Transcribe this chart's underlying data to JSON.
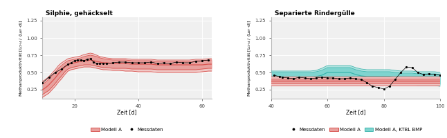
{
  "title1": "Silphie, gehäckselt",
  "title2": "Separierte Rindergülle",
  "ylabel": "Methanproduktivität [L$_{CH4}$ / (L$_{AV}$·d)]",
  "xlabel": "Zeit [d]",
  "bg_color": "#ffffff",
  "plot_bg": "#f0f0f0",
  "grid_color": "#ffffff",
  "plot1": {
    "xlim": [
      10,
      63
    ],
    "ylim": [
      0.12,
      1.3
    ],
    "yticks": [
      0.25,
      0.5,
      0.75,
      1.0,
      1.25
    ],
    "xticks": [
      20,
      40,
      60
    ],
    "model_color": "#d9534f",
    "band_inner_color": "#e8a09d",
    "band_outer_color": "#f0c8c6",
    "model_x": [
      10,
      11,
      12,
      13,
      14,
      15,
      16,
      17,
      18,
      19,
      20,
      21,
      22,
      23,
      24,
      25,
      26,
      27,
      28,
      29,
      30,
      32,
      34,
      36,
      38,
      40,
      42,
      44,
      46,
      48,
      50,
      52,
      54,
      56,
      58,
      60,
      62,
      63
    ],
    "model_y": [
      0.25,
      0.28,
      0.32,
      0.37,
      0.42,
      0.48,
      0.53,
      0.58,
      0.61,
      0.63,
      0.64,
      0.65,
      0.66,
      0.67,
      0.67,
      0.68,
      0.67,
      0.66,
      0.65,
      0.64,
      0.64,
      0.63,
      0.63,
      0.63,
      0.62,
      0.62,
      0.62,
      0.62,
      0.61,
      0.61,
      0.61,
      0.61,
      0.61,
      0.61,
      0.61,
      0.61,
      0.62,
      0.62
    ],
    "upper1_y": [
      0.33,
      0.36,
      0.4,
      0.45,
      0.5,
      0.56,
      0.6,
      0.64,
      0.67,
      0.68,
      0.69,
      0.7,
      0.71,
      0.73,
      0.74,
      0.75,
      0.74,
      0.73,
      0.71,
      0.7,
      0.69,
      0.68,
      0.68,
      0.68,
      0.67,
      0.67,
      0.67,
      0.67,
      0.66,
      0.66,
      0.66,
      0.66,
      0.66,
      0.66,
      0.67,
      0.67,
      0.68,
      0.68
    ],
    "lower1_y": [
      0.18,
      0.21,
      0.24,
      0.29,
      0.34,
      0.4,
      0.45,
      0.51,
      0.55,
      0.57,
      0.58,
      0.59,
      0.6,
      0.61,
      0.61,
      0.61,
      0.6,
      0.59,
      0.58,
      0.57,
      0.57,
      0.56,
      0.56,
      0.56,
      0.55,
      0.55,
      0.55,
      0.55,
      0.54,
      0.54,
      0.54,
      0.54,
      0.54,
      0.54,
      0.54,
      0.55,
      0.56,
      0.56
    ],
    "upper2_y": [
      0.37,
      0.4,
      0.44,
      0.49,
      0.54,
      0.6,
      0.64,
      0.67,
      0.7,
      0.71,
      0.72,
      0.73,
      0.74,
      0.76,
      0.77,
      0.78,
      0.77,
      0.75,
      0.73,
      0.72,
      0.71,
      0.7,
      0.7,
      0.7,
      0.69,
      0.69,
      0.69,
      0.69,
      0.68,
      0.68,
      0.68,
      0.68,
      0.68,
      0.68,
      0.69,
      0.69,
      0.7,
      0.7
    ],
    "lower2_y": [
      0.14,
      0.17,
      0.2,
      0.25,
      0.3,
      0.36,
      0.41,
      0.47,
      0.52,
      0.54,
      0.55,
      0.56,
      0.57,
      0.58,
      0.58,
      0.58,
      0.57,
      0.56,
      0.55,
      0.54,
      0.54,
      0.53,
      0.53,
      0.52,
      0.52,
      0.51,
      0.51,
      0.51,
      0.5,
      0.5,
      0.5,
      0.5,
      0.5,
      0.5,
      0.5,
      0.51,
      0.52,
      0.52
    ],
    "meas_x": [
      10,
      12,
      14,
      16,
      18,
      19,
      20,
      21,
      22,
      23,
      24,
      25,
      26,
      27,
      28,
      29,
      30,
      32,
      34,
      36,
      38,
      40,
      42,
      44,
      46,
      48,
      50,
      52,
      54,
      56,
      58,
      60,
      62
    ],
    "meas_y": [
      0.35,
      0.43,
      0.5,
      0.55,
      0.62,
      0.64,
      0.67,
      0.68,
      0.68,
      0.67,
      0.69,
      0.7,
      0.65,
      0.63,
      0.63,
      0.63,
      0.63,
      0.64,
      0.65,
      0.65,
      0.64,
      0.64,
      0.64,
      0.65,
      0.63,
      0.64,
      0.63,
      0.65,
      0.64,
      0.64,
      0.66,
      0.67,
      0.68
    ]
  },
  "plot2": {
    "xlim": [
      40,
      100
    ],
    "ylim": [
      0.12,
      1.3
    ],
    "yticks": [
      0.25,
      0.5,
      0.75,
      1.0,
      1.25
    ],
    "xticks": [
      40,
      60,
      80,
      100
    ],
    "model_color": "#d9534f",
    "band_inner_color": "#e8a09d",
    "band_outer_color": "#f0c8c6",
    "model2_color": "#3ab5ad",
    "band2_inner_color": "#7fd4cf",
    "band2_outer_color": "#b2e4e1",
    "model_x": [
      40,
      42,
      44,
      46,
      48,
      50,
      52,
      54,
      56,
      58,
      60,
      62,
      64,
      66,
      68,
      70,
      72,
      74,
      76,
      78,
      80,
      82,
      84,
      86,
      88,
      90,
      92,
      94,
      96,
      98,
      100
    ],
    "model_y": [
      0.38,
      0.38,
      0.38,
      0.38,
      0.38,
      0.38,
      0.38,
      0.38,
      0.38,
      0.38,
      0.38,
      0.38,
      0.38,
      0.38,
      0.38,
      0.38,
      0.38,
      0.38,
      0.38,
      0.38,
      0.38,
      0.38,
      0.38,
      0.38,
      0.38,
      0.38,
      0.38,
      0.38,
      0.38,
      0.38,
      0.38
    ],
    "upper1_y": [
      0.41,
      0.41,
      0.41,
      0.41,
      0.41,
      0.41,
      0.41,
      0.41,
      0.41,
      0.41,
      0.41,
      0.41,
      0.41,
      0.41,
      0.41,
      0.41,
      0.41,
      0.41,
      0.41,
      0.41,
      0.41,
      0.41,
      0.41,
      0.41,
      0.41,
      0.41,
      0.41,
      0.41,
      0.41,
      0.41,
      0.41
    ],
    "lower1_y": [
      0.34,
      0.34,
      0.34,
      0.34,
      0.34,
      0.34,
      0.34,
      0.34,
      0.34,
      0.34,
      0.34,
      0.34,
      0.34,
      0.34,
      0.34,
      0.34,
      0.34,
      0.34,
      0.34,
      0.34,
      0.34,
      0.34,
      0.34,
      0.34,
      0.34,
      0.34,
      0.34,
      0.34,
      0.34,
      0.34,
      0.34
    ],
    "upper2_y": [
      0.44,
      0.44,
      0.44,
      0.44,
      0.44,
      0.44,
      0.44,
      0.44,
      0.44,
      0.44,
      0.44,
      0.44,
      0.44,
      0.44,
      0.44,
      0.44,
      0.44,
      0.44,
      0.44,
      0.44,
      0.44,
      0.44,
      0.44,
      0.44,
      0.44,
      0.44,
      0.44,
      0.44,
      0.44,
      0.44,
      0.44
    ],
    "lower2_y": [
      0.31,
      0.31,
      0.31,
      0.31,
      0.31,
      0.31,
      0.31,
      0.31,
      0.31,
      0.31,
      0.31,
      0.31,
      0.31,
      0.31,
      0.31,
      0.31,
      0.31,
      0.31,
      0.31,
      0.31,
      0.31,
      0.31,
      0.31,
      0.31,
      0.31,
      0.31,
      0.31,
      0.31,
      0.31,
      0.31,
      0.31
    ],
    "ktbl_x": [
      40,
      42,
      44,
      46,
      48,
      50,
      52,
      54,
      56,
      58,
      60,
      62,
      64,
      66,
      68,
      70,
      72,
      74,
      76,
      78,
      80,
      82,
      84,
      86,
      88,
      90,
      92,
      94,
      96,
      98,
      100
    ],
    "ktbl_y": [
      0.43,
      0.43,
      0.43,
      0.43,
      0.43,
      0.43,
      0.43,
      0.43,
      0.44,
      0.46,
      0.5,
      0.5,
      0.5,
      0.5,
      0.5,
      0.47,
      0.45,
      0.44,
      0.44,
      0.44,
      0.44,
      0.44,
      0.43,
      0.42,
      0.42,
      0.42,
      0.41,
      0.41,
      0.41,
      0.41,
      0.4
    ],
    "ktbl_upper1_y": [
      0.5,
      0.5,
      0.5,
      0.5,
      0.5,
      0.5,
      0.5,
      0.5,
      0.51,
      0.53,
      0.57,
      0.57,
      0.57,
      0.57,
      0.57,
      0.54,
      0.52,
      0.51,
      0.51,
      0.51,
      0.51,
      0.51,
      0.5,
      0.49,
      0.49,
      0.49,
      0.48,
      0.48,
      0.48,
      0.48,
      0.47
    ],
    "ktbl_lower1_y": [
      0.36,
      0.36,
      0.36,
      0.36,
      0.36,
      0.36,
      0.36,
      0.36,
      0.37,
      0.39,
      0.43,
      0.43,
      0.43,
      0.43,
      0.43,
      0.4,
      0.38,
      0.37,
      0.37,
      0.37,
      0.37,
      0.37,
      0.36,
      0.35,
      0.35,
      0.35,
      0.34,
      0.34,
      0.34,
      0.34,
      0.33
    ],
    "ktbl_upper2_y": [
      0.52,
      0.52,
      0.52,
      0.52,
      0.52,
      0.52,
      0.52,
      0.52,
      0.53,
      0.56,
      0.6,
      0.6,
      0.6,
      0.6,
      0.6,
      0.57,
      0.55,
      0.54,
      0.54,
      0.54,
      0.54,
      0.54,
      0.53,
      0.52,
      0.52,
      0.52,
      0.51,
      0.51,
      0.51,
      0.51,
      0.5
    ],
    "ktbl_lower2_y": [
      0.33,
      0.33,
      0.33,
      0.33,
      0.33,
      0.33,
      0.33,
      0.33,
      0.34,
      0.36,
      0.4,
      0.4,
      0.4,
      0.4,
      0.4,
      0.37,
      0.35,
      0.34,
      0.34,
      0.34,
      0.34,
      0.34,
      0.33,
      0.32,
      0.32,
      0.32,
      0.31,
      0.31,
      0.31,
      0.31,
      0.3
    ],
    "meas_x": [
      41,
      43,
      44,
      46,
      48,
      50,
      52,
      54,
      56,
      58,
      60,
      62,
      64,
      66,
      68,
      70,
      72,
      74,
      76,
      78,
      80,
      82,
      84,
      86,
      88,
      90,
      92,
      94,
      96,
      98,
      100
    ],
    "meas_y": [
      0.46,
      0.44,
      0.43,
      0.42,
      0.41,
      0.43,
      0.42,
      0.41,
      0.42,
      0.43,
      0.42,
      0.42,
      0.41,
      0.41,
      0.42,
      0.41,
      0.4,
      0.35,
      0.3,
      0.28,
      0.26,
      0.3,
      0.4,
      0.5,
      0.58,
      0.57,
      0.5,
      0.47,
      0.48,
      0.47,
      0.46
    ]
  },
  "legend1_model": "Modell A",
  "legend1_meas": "Messdaten",
  "legend2_meas": "Messdaten",
  "legend2_model": "Modell A",
  "legend2_ktbl": "Modell A, KTBL BMP"
}
